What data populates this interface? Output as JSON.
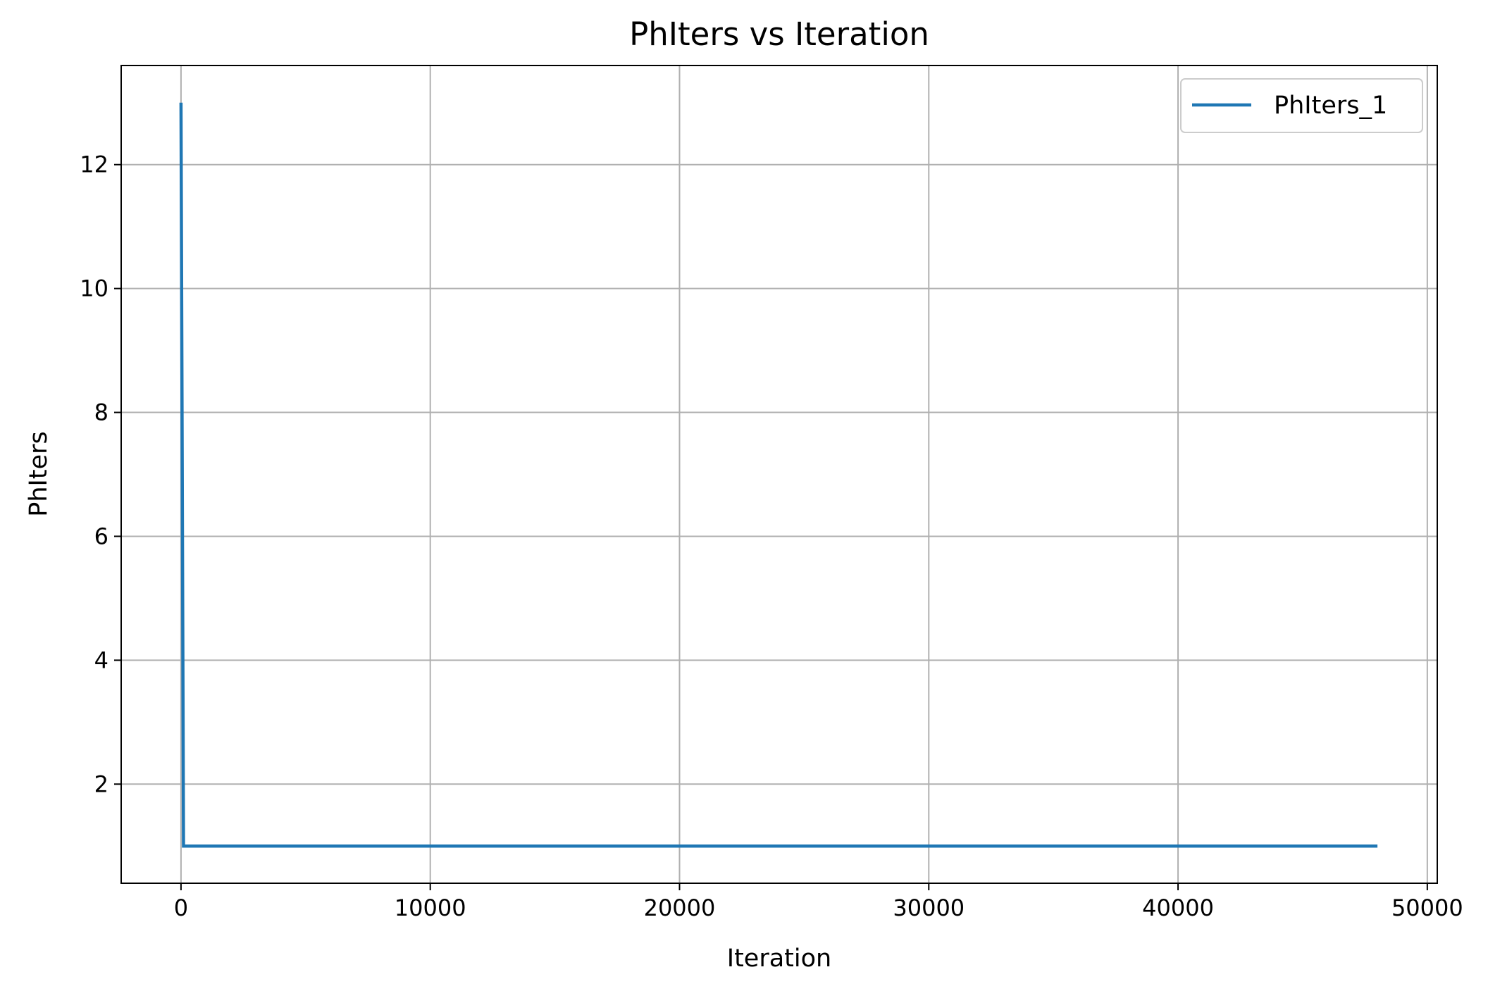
{
  "chart_data": {
    "type": "line",
    "title": "PhIters vs Iteration",
    "xlabel": "Iteration",
    "ylabel": "PhIters",
    "xlim": [
      -2400,
      50400
    ],
    "ylim": [
      0.4,
      13.6
    ],
    "xticks": [
      0,
      10000,
      20000,
      30000,
      40000,
      50000
    ],
    "yticks": [
      2,
      4,
      6,
      8,
      10,
      12
    ],
    "grid": true,
    "legend_position": "top-right",
    "series": [
      {
        "name": "PhIters_1",
        "color": "#1f77b4",
        "x": [
          0,
          100,
          200,
          48000
        ],
        "y": [
          13,
          1,
          1,
          1
        ]
      }
    ]
  }
}
